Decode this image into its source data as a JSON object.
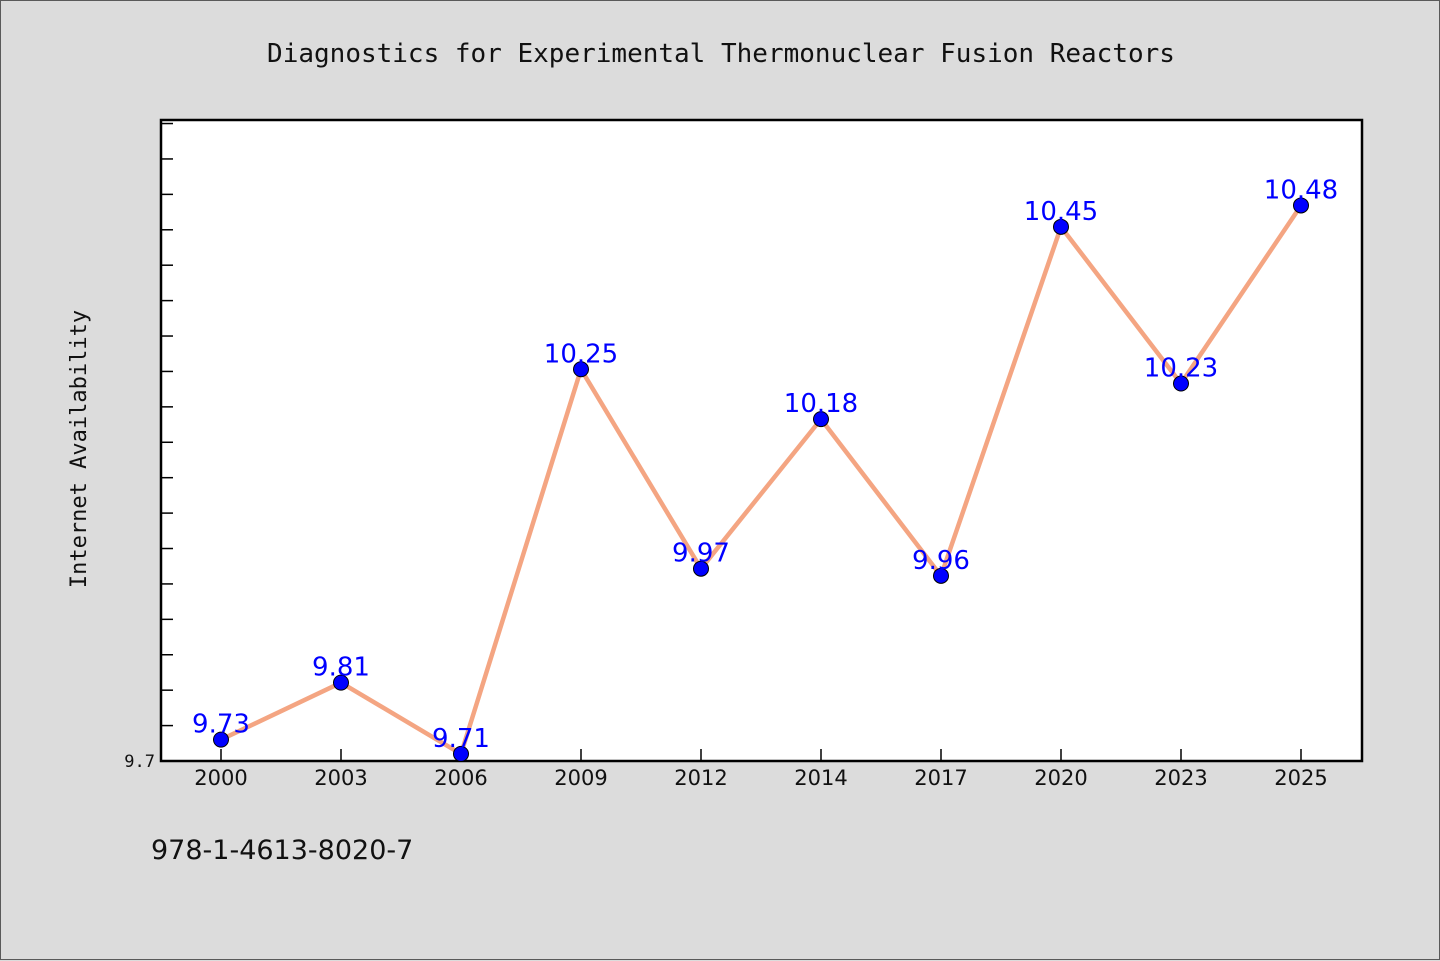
{
  "chart_data": {
    "type": "line",
    "title": "Diagnostics for Experimental Thermonuclear Fusion Reactors",
    "xlabel": "",
    "ylabel": "Internet Availability",
    "categories": [
      "2000",
      "2003",
      "2006",
      "2009",
      "2012",
      "2014",
      "2017",
      "2020",
      "2023",
      "2025"
    ],
    "series": [
      {
        "values": [
          9.73,
          9.81,
          9.71,
          10.25,
          9.97,
          10.18,
          9.96,
          10.45,
          10.23,
          10.48
        ],
        "line_color": "#f4a582",
        "marker_color": "#0000ff"
      }
    ],
    "data_labels": [
      "9.73",
      "9.81",
      "9.71",
      "10.25",
      "9.97",
      "10.18",
      "9.96",
      "10.45",
      "10.23",
      "10.48"
    ],
    "ylim": [
      9.7,
      10.6
    ],
    "ytick_labels": [
      "9.7"
    ],
    "grid": false,
    "legend": "none"
  },
  "footer": {
    "isbn": "978-1-4613-8020-7"
  }
}
